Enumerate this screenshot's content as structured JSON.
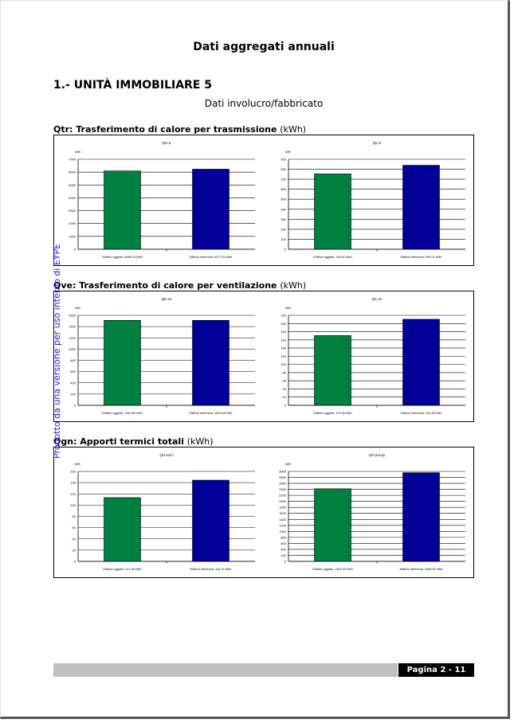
{
  "doc_title": "Dati aggregati annuali",
  "section_title": "1.- UNITÀ IMMOBILIARE 5",
  "subtitle": "Dati involucro/fabbricato",
  "watermark": "Prodotto da una versione per uso interno di EYPE",
  "footer_page": "Pagina 2 - 11",
  "colors": {
    "edificio_oggetto": "#008040",
    "edificio_riferimento": "#000099"
  },
  "blocks": [
    {
      "title_bold": "Qtr: Trasferimento di calore per trasmissione",
      "title_unit": "(kWh)",
      "charts": [
        {
          "title": "QH,tr",
          "unit": "kWh",
          "ylim": [
            0,
            7000
          ],
          "step": 1000,
          "label_oggetto": "Edificio oggetto: 6089.23 kWh",
          "label_riferimento": "Edificio referenza: 6227.52 kWh"
        },
        {
          "title": "QC,tr",
          "unit": "kWh",
          "ylim": [
            0,
            900
          ],
          "step": 100,
          "label_oggetto": "Edificio oggetto: 753.61 kWh",
          "label_riferimento": "Edificio referenza: 840.01 kWh"
        }
      ]
    },
    {
      "title_bold": "Qve: Trasferimento di calore per ventilazione",
      "title_unit": "(kWh)",
      "charts": [
        {
          "title": "QH,ve",
          "unit": "kWh",
          "ylim": [
            0,
            1600
          ],
          "step": 200,
          "label_oggetto": "Edificio oggetto: 1510.66 kWh",
          "label_riferimento": "Edificio referenza: 1510.66 kWh"
        },
        {
          "title": "QC,ve",
          "unit": "kWh",
          "ylim": [
            0,
            220
          ],
          "step": 20,
          "label_oggetto": "Edificio oggetto: 170.46 kWh",
          "label_riferimento": "Edificio referenza: 210.36 kWh"
        }
      ]
    },
    {
      "title_bold": "Qgn: Apporti termici totali",
      "title_unit": "(kWh)",
      "charts": [
        {
          "title": "QH,sol,ri",
          "unit": "kWh",
          "ylim": [
            0,
            160
          ],
          "step": 20,
          "label_oggetto": "Edificio oggetto: 113.35 kWh",
          "label_riferimento": "Edificio referenza: 144.37 kWh"
        },
        {
          "title": "QH,sol,op",
          "unit": "kWh",
          "ylim": [
            0,
            3000
          ],
          "step": 200,
          "label_oggetto": "Edificio oggetto: 2420.33 kWh",
          "label_riferimento": "Edificio referenza: 2956.51 kWh"
        }
      ]
    }
  ],
  "chart_data": [
    {
      "type": "bar",
      "title": "QH,tr",
      "ylabel": "kWh",
      "ylim": [
        0,
        7000
      ],
      "categories": [
        "Edificio oggetto",
        "Edificio referenza"
      ],
      "values": [
        6089.23,
        6227.52
      ]
    },
    {
      "type": "bar",
      "title": "QC,tr",
      "ylabel": "kWh",
      "ylim": [
        0,
        900
      ],
      "categories": [
        "Edificio oggetto",
        "Edificio referenza"
      ],
      "values": [
        753.61,
        840.01
      ]
    },
    {
      "type": "bar",
      "title": "QH,ve",
      "ylabel": "kWh",
      "ylim": [
        0,
        1600
      ],
      "categories": [
        "Edificio oggetto",
        "Edificio referenza"
      ],
      "values": [
        1510.66,
        1510.66
      ]
    },
    {
      "type": "bar",
      "title": "QC,ve",
      "ylabel": "kWh",
      "ylim": [
        0,
        220
      ],
      "categories": [
        "Edificio oggetto",
        "Edificio referenza"
      ],
      "values": [
        170.46,
        210.36
      ]
    },
    {
      "type": "bar",
      "title": "QH,sol,ri",
      "ylabel": "kWh",
      "ylim": [
        0,
        160
      ],
      "categories": [
        "Edificio oggetto",
        "Edificio referenza"
      ],
      "values": [
        113.35,
        144.37
      ]
    },
    {
      "type": "bar",
      "title": "QH,sol,op",
      "ylabel": "kWh",
      "ylim": [
        0,
        3000
      ],
      "categories": [
        "Edificio oggetto",
        "Edificio referenza"
      ],
      "values": [
        2420.33,
        2956.51
      ]
    }
  ]
}
